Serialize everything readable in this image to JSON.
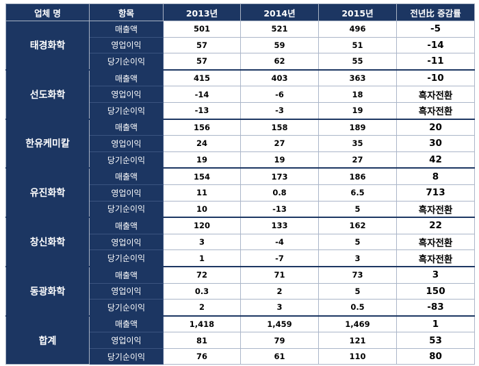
{
  "headers": {
    "company": "업체 명",
    "item": "항목",
    "y2013": "2013년",
    "y2014": "2014년",
    "y2015": "2015년",
    "change": "전년比 증감률"
  },
  "groups": [
    {
      "company": "태경화학",
      "rows": [
        {
          "item": "매출액",
          "y2013": "501",
          "y2014": "521",
          "y2015": "496",
          "change": "-5"
        },
        {
          "item": "영업이익",
          "y2013": "57",
          "y2014": "59",
          "y2015": "51",
          "change": "-14"
        },
        {
          "item": "당기순이익",
          "y2013": "57",
          "y2014": "62",
          "y2015": "55",
          "change": "-11"
        }
      ]
    },
    {
      "company": "선도화학",
      "rows": [
        {
          "item": "매출액",
          "y2013": "415",
          "y2014": "403",
          "y2015": "363",
          "change": "-10"
        },
        {
          "item": "영업이익",
          "y2013": "-14",
          "y2014": "-6",
          "y2015": "18",
          "change": "흑자전환"
        },
        {
          "item": "당기순이익",
          "y2013": "-13",
          "y2014": "-3",
          "y2015": "19",
          "change": "흑자전환"
        }
      ]
    },
    {
      "company": "한유케미칼",
      "rows": [
        {
          "item": "매출액",
          "y2013": "156",
          "y2014": "158",
          "y2015": "189",
          "change": "20"
        },
        {
          "item": "영업이익",
          "y2013": "24",
          "y2014": "27",
          "y2015": "35",
          "change": "30"
        },
        {
          "item": "당기순이익",
          "y2013": "19",
          "y2014": "19",
          "y2015": "27",
          "change": "42"
        }
      ]
    },
    {
      "company": "유진화학",
      "rows": [
        {
          "item": "매출액",
          "y2013": "154",
          "y2014": "173",
          "y2015": "186",
          "change": "8"
        },
        {
          "item": "영업이익",
          "y2013": "11",
          "y2014": "0.8",
          "y2015": "6.5",
          "change": "713"
        },
        {
          "item": "당기순이익",
          "y2013": "10",
          "y2014": "-13",
          "y2015": "5",
          "change": "흑자전환"
        }
      ]
    },
    {
      "company": "창신화학",
      "rows": [
        {
          "item": "매출액",
          "y2013": "120",
          "y2014": "133",
          "y2015": "162",
          "change": "22"
        },
        {
          "item": "영업이익",
          "y2013": "3",
          "y2014": "-4",
          "y2015": "5",
          "change": "흑자전환"
        },
        {
          "item": "당기순이익",
          "y2013": "1",
          "y2014": "-7",
          "y2015": "3",
          "change": "흑자전환"
        }
      ]
    },
    {
      "company": "동광화학",
      "rows": [
        {
          "item": "매출액",
          "y2013": "72",
          "y2014": "71",
          "y2015": "73",
          "change": "3"
        },
        {
          "item": "영업이익",
          "y2013": "0.3",
          "y2014": "2",
          "y2015": "5",
          "change": "150"
        },
        {
          "item": "당기순이익",
          "y2013": "2",
          "y2014": "3",
          "y2015": "0.5",
          "change": "-83"
        }
      ]
    },
    {
      "company": "합계",
      "rows": [
        {
          "item": "매출액",
          "y2013": "1,418",
          "y2014": "1,459",
          "y2015": "1,469",
          "change": "1"
        },
        {
          "item": "영업이익",
          "y2013": "81",
          "y2014": "79",
          "y2015": "121",
          "change": "53"
        },
        {
          "item": "당기순이익",
          "y2013": "76",
          "y2014": "61",
          "y2015": "110",
          "change": "80"
        }
      ]
    }
  ]
}
